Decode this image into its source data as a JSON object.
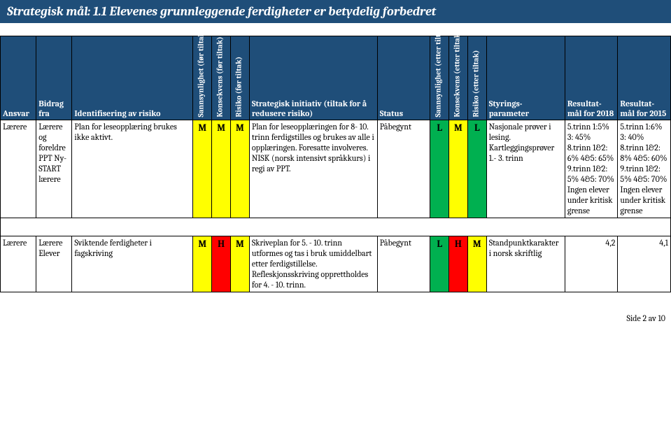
{
  "title": "Strategisk mål: 1.1 Elevenes grunnleggende ferdigheter er betydelig forbedret",
  "columns": {
    "ansvar": "Ansvar",
    "bidrag": "Bidrag fra",
    "ident": "Identifisering av risiko",
    "sann_for": "Sannsynlighet (før tiltak)",
    "kons_for": "Konsekvens (før tiltak)",
    "ris_for": "Risiko (før tiltak)",
    "initiativ": "Strategisk initiativ (tiltak for å redusere risiko)",
    "status": "Status",
    "sann_etter": "Sannsynlighet (etter tiltak)",
    "kons_etter": "Konsekvens (etter tiltak)",
    "ris_etter": "Risiko (etter tiltak)",
    "styr": "Styrings-parameter",
    "res2018": "Resultat-mål for 2018",
    "res2015": "Resultat-mål for 2015"
  },
  "risk_colors": {
    "M": "#ffff00",
    "H": "#ff0000",
    "L": "#00b050"
  },
  "rows": [
    {
      "ansvar": "Lærere",
      "bidrag": "Lærere og foreldre PPT Ny-START lærere",
      "ident": "Plan for leseopplæring brukes ikke aktivt.",
      "sann_for": "M",
      "kons_for": "M",
      "ris_for": "M",
      "initiativ": "Plan for leseopplæringen for 8- 10. trinn ferdigstilles og brukes av alle i opplæringen. Foresatte involveres. NISK (norsk intensivt språkkurs) i regi av PPT.",
      "status": "Påbegynt",
      "sann_etter": "L",
      "kons_etter": "M",
      "ris_etter": "L",
      "styr": "Nasjonale prøver i lesing. Kartleggingsprøver 1.- 3. trinn",
      "res2018": "5.trinn 1:5% 3: 45% 8.trinn 1&2: 6% 4&5: 65% 9.trinn 1&2: 5% 4&5: 70% Ingen elever under kritisk grense",
      "res2015": "5.trinn 1:6% 3: 40% 8.trinn 1&2: 8% 4&5: 60% 9.trinn 1&2: 5% 4&5: 70% Ingen elever under kritisk grense"
    },
    {
      "ansvar": "Lærere",
      "bidrag": "Lærere Elever",
      "ident": "Sviktende ferdigheter i fagskriving",
      "sann_for": "M",
      "kons_for": "H",
      "ris_for": "M",
      "initiativ": "Skriveplan for 5. - 10. trinn utformes og tas i bruk umiddelbart etter ferdigstillelse. Refleskjonsskriving opprettholdes for 4. - 10. trinn.",
      "status": "Påbegynt",
      "sann_etter": "L",
      "kons_etter": "H",
      "ris_etter": "M",
      "styr": "Standpunktkarakter i norsk skriftlig",
      "res2018": "4,2",
      "res2015": "4,1"
    }
  ],
  "footer": "Side 2 av 10"
}
